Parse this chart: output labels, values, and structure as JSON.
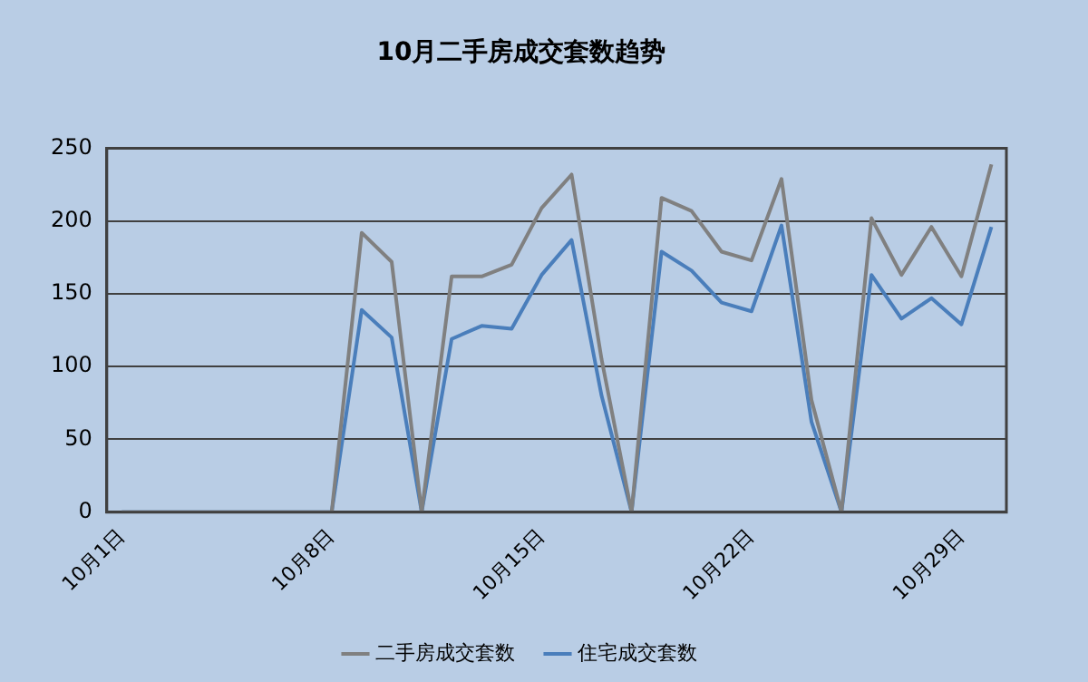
{
  "chart_data": {
    "type": "line",
    "title": "10月二手房成交套数趋势",
    "categories": [
      "10月1日",
      null,
      null,
      null,
      null,
      null,
      null,
      "10月8日",
      null,
      null,
      null,
      null,
      null,
      null,
      "10月15日",
      null,
      null,
      null,
      null,
      null,
      null,
      "10月22日",
      null,
      null,
      null,
      null,
      null,
      null,
      "10月29日",
      null
    ],
    "series": [
      {
        "name": "二手房成交套数",
        "color": "#808080",
        "values": [
          0,
          0,
          0,
          0,
          0,
          0,
          0,
          0,
          192,
          172,
          0,
          162,
          162,
          170,
          209,
          232,
          105,
          0,
          216,
          207,
          179,
          173,
          229,
          77,
          0,
          202,
          163,
          196,
          162,
          239
        ]
      },
      {
        "name": "住宅成交套数",
        "color": "#4a7ebb",
        "values": [
          0,
          0,
          0,
          0,
          0,
          0,
          0,
          0,
          139,
          120,
          0,
          119,
          128,
          126,
          163,
          187,
          80,
          0,
          179,
          166,
          144,
          138,
          197,
          62,
          0,
          163,
          133,
          147,
          129,
          196
        ]
      }
    ],
    "ylim": [
      0,
      250
    ],
    "yticks": [
      0,
      50,
      100,
      150,
      200,
      250
    ],
    "grid": "y",
    "legend": "bottom",
    "marker": "none",
    "line_style": "solid"
  }
}
